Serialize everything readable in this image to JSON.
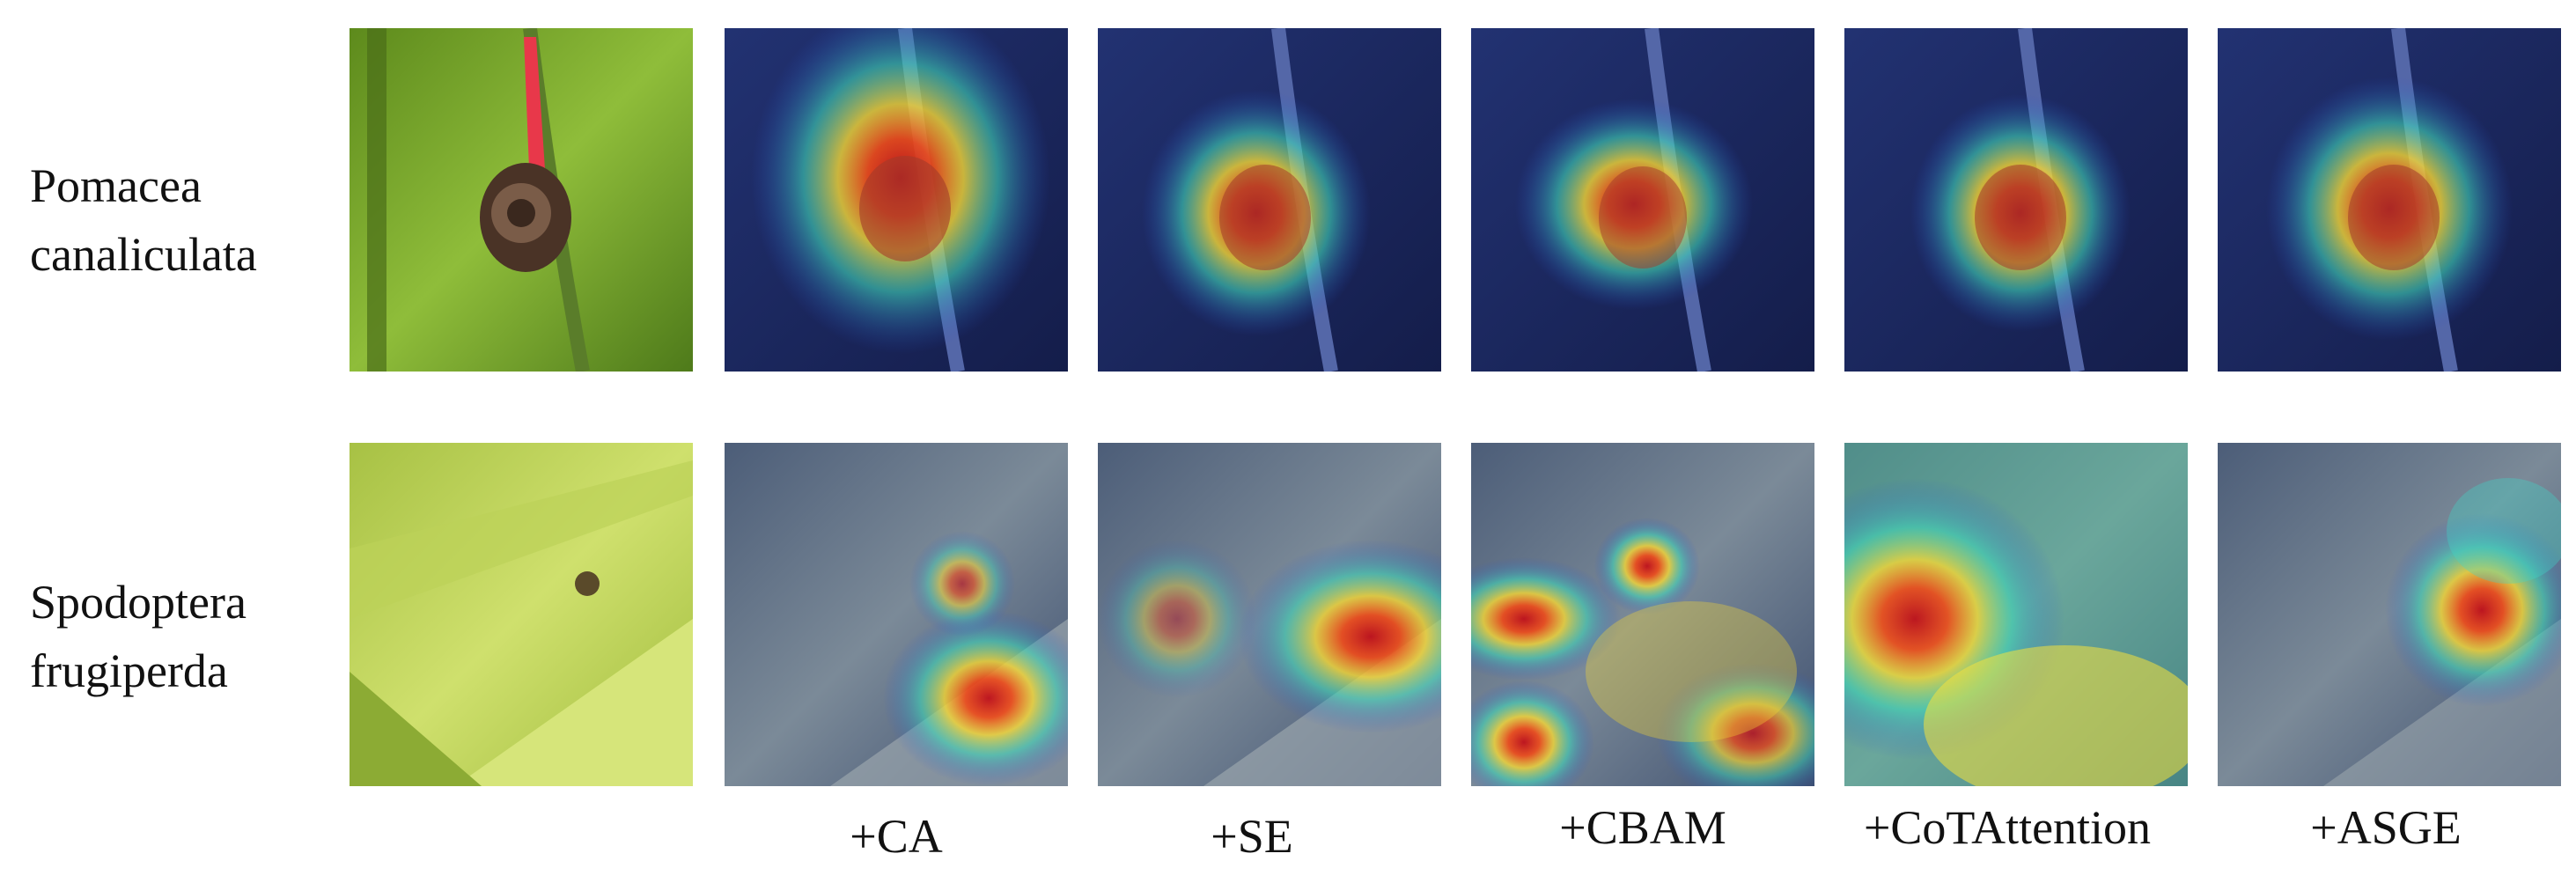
{
  "rows": [
    {
      "label_line1": "Pomacea",
      "label_line2": "canaliculata"
    },
    {
      "label_line1": "Spodoptera",
      "label_line2": "frugiperda"
    }
  ],
  "columns": [
    {
      "label": ""
    },
    {
      "label": "+CA"
    },
    {
      "label": "+SE"
    },
    {
      "label": "+CBAM"
    },
    {
      "label": "+CoTAttention"
    },
    {
      "label": "+ASGE"
    }
  ],
  "colors": {
    "snail_photo_green": "#7fae2f",
    "leaf_photo_yellowgreen": "#b9cf5a",
    "heatmap_dark_blue": "#1d2a63",
    "heatmap_red": "#e03018",
    "heatmap_yellow": "#f6e23a",
    "heatmap_cyan": "#3fd6c8"
  }
}
